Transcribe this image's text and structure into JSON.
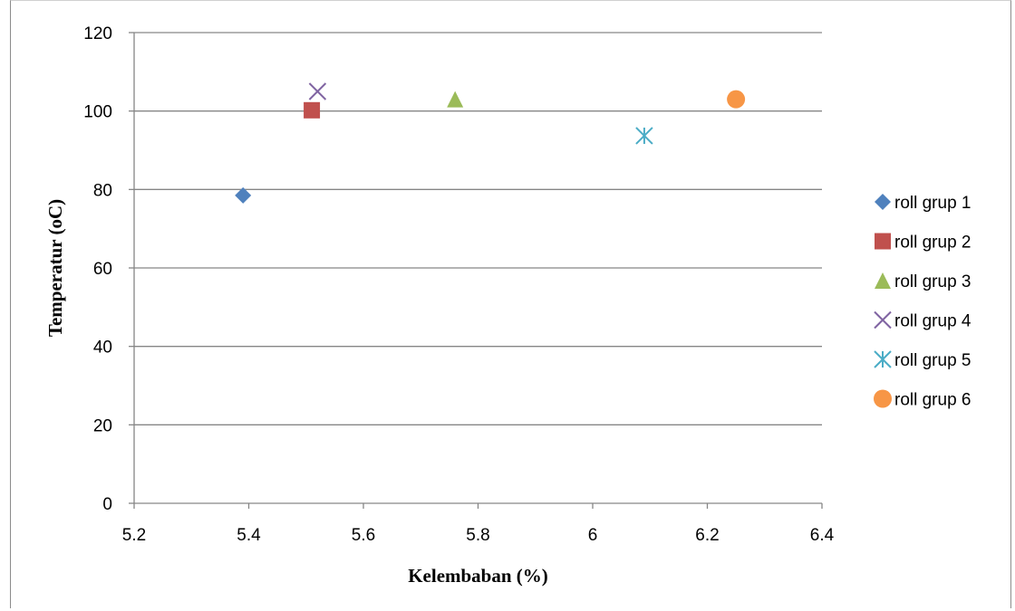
{
  "chart_data": {
    "type": "scatter",
    "title": "",
    "xlabel": "Kelembaban (%)",
    "ylabel": "Temperatur (oC)",
    "xlim": [
      5.2,
      6.4
    ],
    "ylim": [
      0,
      120
    ],
    "xticks": [
      "5.2",
      "5.4",
      "5.6",
      "5.8",
      "6",
      "6.2",
      "6.4"
    ],
    "yticks": [
      "0",
      "20",
      "40",
      "60",
      "80",
      "100",
      "120"
    ],
    "grid": "horizontal",
    "legend_position": "right",
    "series": [
      {
        "name": "roll grup 1",
        "marker": "diamond",
        "color": "#4F81BD",
        "points": [
          {
            "x": 5.39,
            "y": 78.5
          }
        ]
      },
      {
        "name": "roll grup 2",
        "marker": "square",
        "color": "#C0504D",
        "points": [
          {
            "x": 5.51,
            "y": 100.2
          }
        ]
      },
      {
        "name": "roll grup 3",
        "marker": "triangle",
        "color": "#9BBB59",
        "points": [
          {
            "x": 5.76,
            "y": 103
          }
        ]
      },
      {
        "name": "roll grup 4",
        "marker": "x",
        "color": "#8064A2",
        "points": [
          {
            "x": 5.52,
            "y": 105
          }
        ]
      },
      {
        "name": "roll grup 5",
        "marker": "asterisk",
        "color": "#4BACC6",
        "points": [
          {
            "x": 6.09,
            "y": 93.7
          }
        ]
      },
      {
        "name": "roll grup 6",
        "marker": "circle",
        "color": "#F79646",
        "points": [
          {
            "x": 6.25,
            "y": 103
          }
        ]
      }
    ]
  }
}
